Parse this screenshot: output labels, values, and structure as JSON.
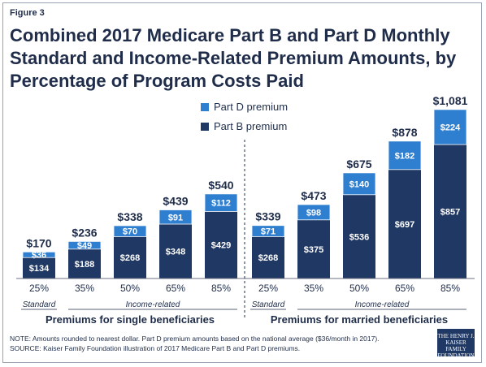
{
  "figure_label": "Figure 3",
  "title_lines": [
    "Combined 2017 Medicare Part B and Part D Monthly",
    "Standard and Income-Related Premium Amounts, by",
    "Percentage of Program Costs Paid"
  ],
  "note": "NOTE: Amounts rounded to nearest dollar. Part D premium amounts based on the national average ($36/month in 2017).",
  "source": "SOURCE: Kaiser Family Foundation illustration of 2017 Medicare Part B and Part D premiums.",
  "logo_lines": [
    "THE HENRY J.",
    "KAISER",
    "FAMILY",
    "FOUNDATION"
  ],
  "colors": {
    "part_b": "#1f3864",
    "part_d": "#2f7fd0"
  },
  "chart_data": {
    "type": "bar",
    "stacked": true,
    "ylim": [
      0,
      1200
    ],
    "legend_position": "top-left",
    "categories": [
      "25%",
      "35%",
      "50%",
      "65%",
      "85%",
      "25%",
      "35%",
      "50%",
      "65%",
      "85%"
    ],
    "series": [
      {
        "name": "Part B premium",
        "values": [
          134,
          188,
          268,
          348,
          429,
          268,
          375,
          536,
          697,
          857
        ]
      },
      {
        "name": "Part D premium",
        "values": [
          36,
          49,
          70,
          91,
          112,
          71,
          98,
          140,
          182,
          224
        ]
      }
    ],
    "totals": [
      "$170",
      "$236",
      "$338",
      "$439",
      "$540",
      "$339",
      "$473",
      "$675",
      "$878",
      "$1,081"
    ],
    "part_b_labels": [
      "$134",
      "$188",
      "$268",
      "$348",
      "$429",
      "$268",
      "$375",
      "$536",
      "$697",
      "$857"
    ],
    "part_d_labels": [
      "$36",
      "$49",
      "$70",
      "$91",
      "$112",
      "$71",
      "$98",
      "$140",
      "$182",
      "$224"
    ],
    "groups": [
      {
        "title": "Premiums for single beneficiaries",
        "standard_label": "Standard",
        "income_label": "Income-related"
      },
      {
        "title": "Premiums for married beneficiaries",
        "standard_label": "Standard",
        "income_label": "Income-related"
      }
    ]
  }
}
